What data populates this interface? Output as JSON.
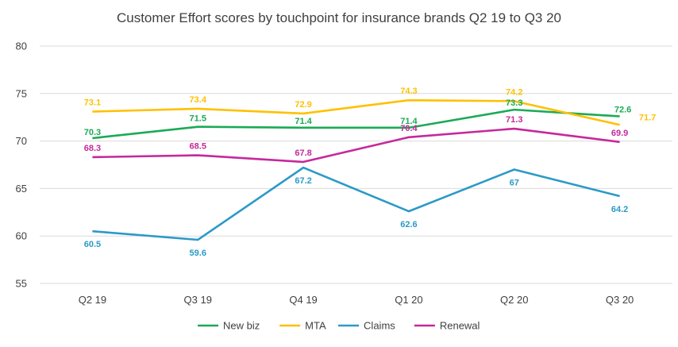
{
  "chart_data": {
    "type": "line",
    "title": "Customer Effort scores by touchpoint for insurance brands Q2 19 to Q3 20",
    "xlabel": "",
    "ylabel": "",
    "categories": [
      "Q2 19",
      "Q3 19",
      "Q4 19",
      "Q1 20",
      "Q2 20",
      "Q3 20"
    ],
    "ylim": [
      55,
      80
    ],
    "yticks": [
      55,
      60,
      65,
      70,
      75,
      80
    ],
    "grid": true,
    "legend_position": "bottom",
    "series": [
      {
        "name": "New biz",
        "color": "#1aaa55",
        "values": [
          70.3,
          71.5,
          71.4,
          71.4,
          73.3,
          72.6
        ],
        "labels": [
          "70.3",
          "71.5",
          "71.4",
          "71.4",
          "73.3",
          "72.6"
        ]
      },
      {
        "name": "MTA",
        "color": "#ffc000",
        "values": [
          73.1,
          73.4,
          72.9,
          74.3,
          74.2,
          71.7
        ],
        "labels": [
          "73.1",
          "73.4",
          "72.9",
          "74.3",
          "74.2",
          "71.7"
        ]
      },
      {
        "name": "Claims",
        "color": "#2b9ac7",
        "values": [
          60.5,
          59.6,
          67.2,
          62.6,
          67.0,
          64.2
        ],
        "labels": [
          "60.5",
          "59.6",
          "67.2",
          "62.6",
          "67",
          "64.2"
        ]
      },
      {
        "name": "Renewal",
        "color": "#c5299b",
        "values": [
          68.3,
          68.5,
          67.8,
          70.4,
          71.3,
          69.9
        ],
        "labels": [
          "68.3",
          "68.5",
          "67.8",
          "70.4",
          "71.3",
          "69.9"
        ]
      }
    ]
  }
}
